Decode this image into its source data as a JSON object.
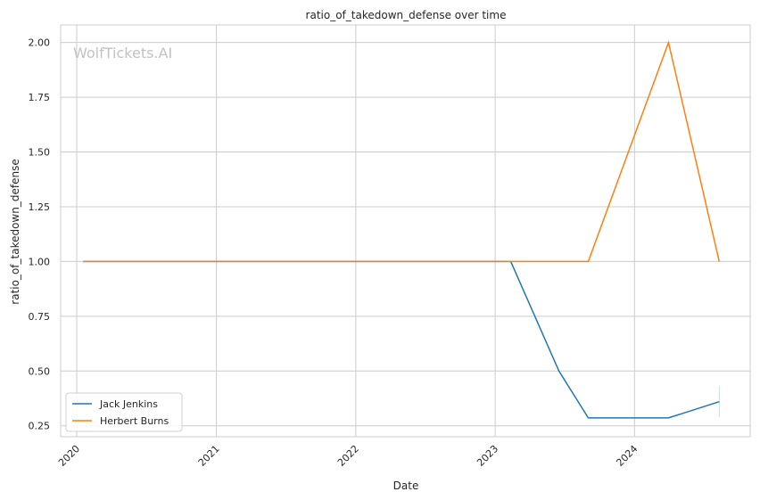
{
  "chart_data": {
    "type": "line",
    "title": "ratio_of_takedown_defense over time",
    "xlabel": "Date",
    "ylabel": "ratio_of_takedown_defense",
    "watermark": "WolfTickets.AI",
    "xlim": [
      "2019-11-20",
      "2024-10-30"
    ],
    "ylim": [
      0.2,
      2.08
    ],
    "x_ticks": [
      "2020-01-01",
      "2021-01-01",
      "2022-01-01",
      "2023-01-01",
      "2024-01-01"
    ],
    "x_tick_labels": [
      "2020",
      "2021",
      "2022",
      "2023",
      "2024"
    ],
    "y_ticks": [
      0.25,
      0.5,
      0.75,
      1.0,
      1.25,
      1.5,
      1.75,
      2.0
    ],
    "y_tick_labels": [
      "0.25",
      "0.50",
      "0.75",
      "1.00",
      "1.25",
      "1.50",
      "1.75",
      "2.00"
    ],
    "grid": true,
    "legend_position": "lower-left",
    "series": [
      {
        "name": "Jack Jenkins",
        "color": "#1f77b4",
        "x": [
          "2020-01-18",
          "2023-02-11",
          "2023-06-17",
          "2023-09-02",
          "2024-03-30",
          "2024-08-10"
        ],
        "y": [
          1.0,
          1.0,
          0.5,
          0.286,
          0.286,
          0.36
        ],
        "error_bar": {
          "x": "2024-08-10",
          "low": 0.29,
          "high": 0.43
        }
      },
      {
        "name": "Herbert Burns",
        "color": "#ff7f0e",
        "x": [
          "2020-01-18",
          "2023-09-02",
          "2024-03-30",
          "2024-08-10"
        ],
        "y": [
          1.0,
          1.0,
          2.0,
          1.0
        ]
      }
    ]
  }
}
